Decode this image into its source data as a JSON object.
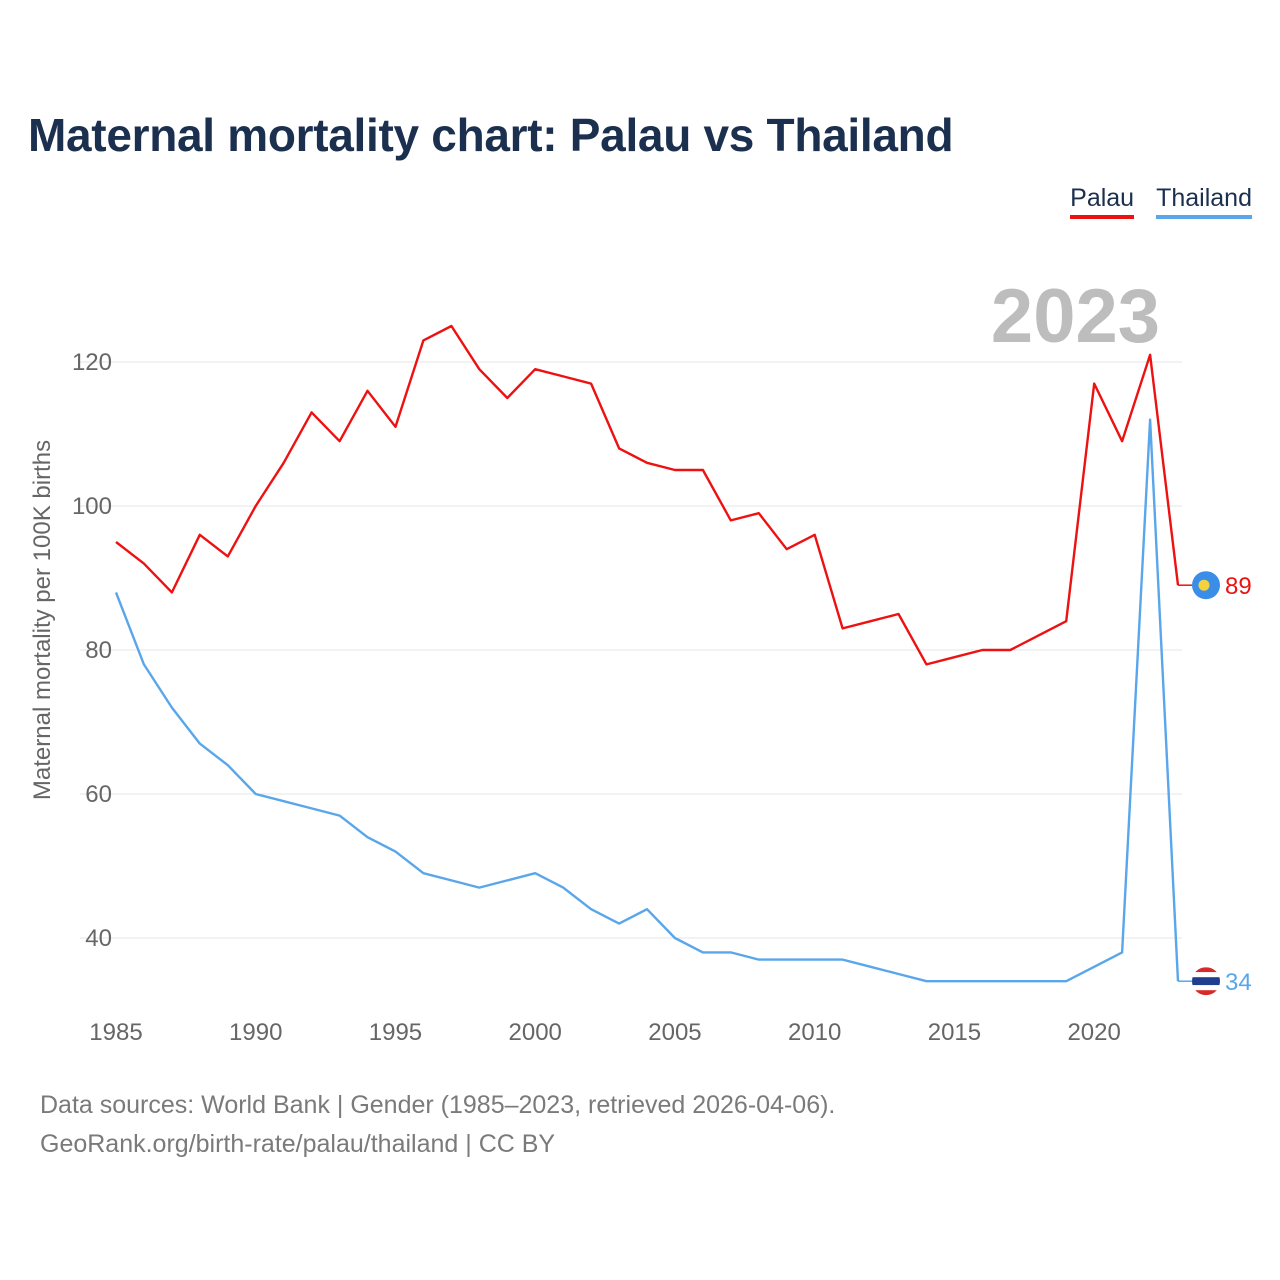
{
  "title": "Maternal mortality chart: Palau vs Thailand",
  "legend": {
    "palau": "Palau",
    "thailand": "Thailand"
  },
  "year_watermark": "2023",
  "footer": {
    "line1": "Data sources: World Bank | Gender (1985–2023, retrieved 2026-04-06).",
    "line2": "GeoRank.org/birth-rate/palau/thailand | CC BY"
  },
  "colors": {
    "palau": "#ee1111",
    "thailand": "#5aa6ea",
    "title": "#1b2f4f"
  },
  "chart_data": {
    "type": "line",
    "title": "Maternal mortality chart: Palau vs Thailand",
    "xlabel": "",
    "ylabel": "Maternal mortality per 100K births",
    "x": [
      1985,
      1986,
      1987,
      1988,
      1989,
      1990,
      1991,
      1992,
      1993,
      1994,
      1995,
      1996,
      1997,
      1998,
      1999,
      2000,
      2001,
      2002,
      2003,
      2004,
      2005,
      2006,
      2007,
      2008,
      2009,
      2010,
      2011,
      2012,
      2013,
      2014,
      2015,
      2016,
      2017,
      2018,
      2019,
      2020,
      2021,
      2022,
      2023
    ],
    "xlim": [
      1985,
      2023
    ],
    "ylim": [
      30,
      130
    ],
    "xticks": [
      1985,
      1990,
      1995,
      2000,
      2005,
      2010,
      2015,
      2020
    ],
    "yticks": [
      40,
      60,
      80,
      100,
      120
    ],
    "series": [
      {
        "name": "Palau",
        "color": "#ee1111",
        "end_label": "89",
        "values": [
          95,
          92,
          88,
          96,
          93,
          100,
          106,
          113,
          109,
          116,
          111,
          123,
          125,
          119,
          115,
          119,
          118,
          117,
          108,
          106,
          105,
          105,
          98,
          99,
          94,
          96,
          83,
          84,
          85,
          78,
          79,
          80,
          80,
          82,
          84,
          117,
          109,
          121,
          89
        ]
      },
      {
        "name": "Thailand",
        "color": "#5aa6ea",
        "end_label": "34",
        "values": [
          88,
          78,
          72,
          67,
          64,
          60,
          59,
          58,
          57,
          54,
          52,
          49,
          48,
          47,
          48,
          49,
          47,
          44,
          42,
          44,
          40,
          38,
          38,
          37,
          37,
          37,
          37,
          36,
          35,
          34,
          34,
          34,
          34,
          34,
          34,
          36,
          38,
          112,
          34
        ]
      }
    ],
    "grid": true,
    "legend_position": "top-right"
  }
}
